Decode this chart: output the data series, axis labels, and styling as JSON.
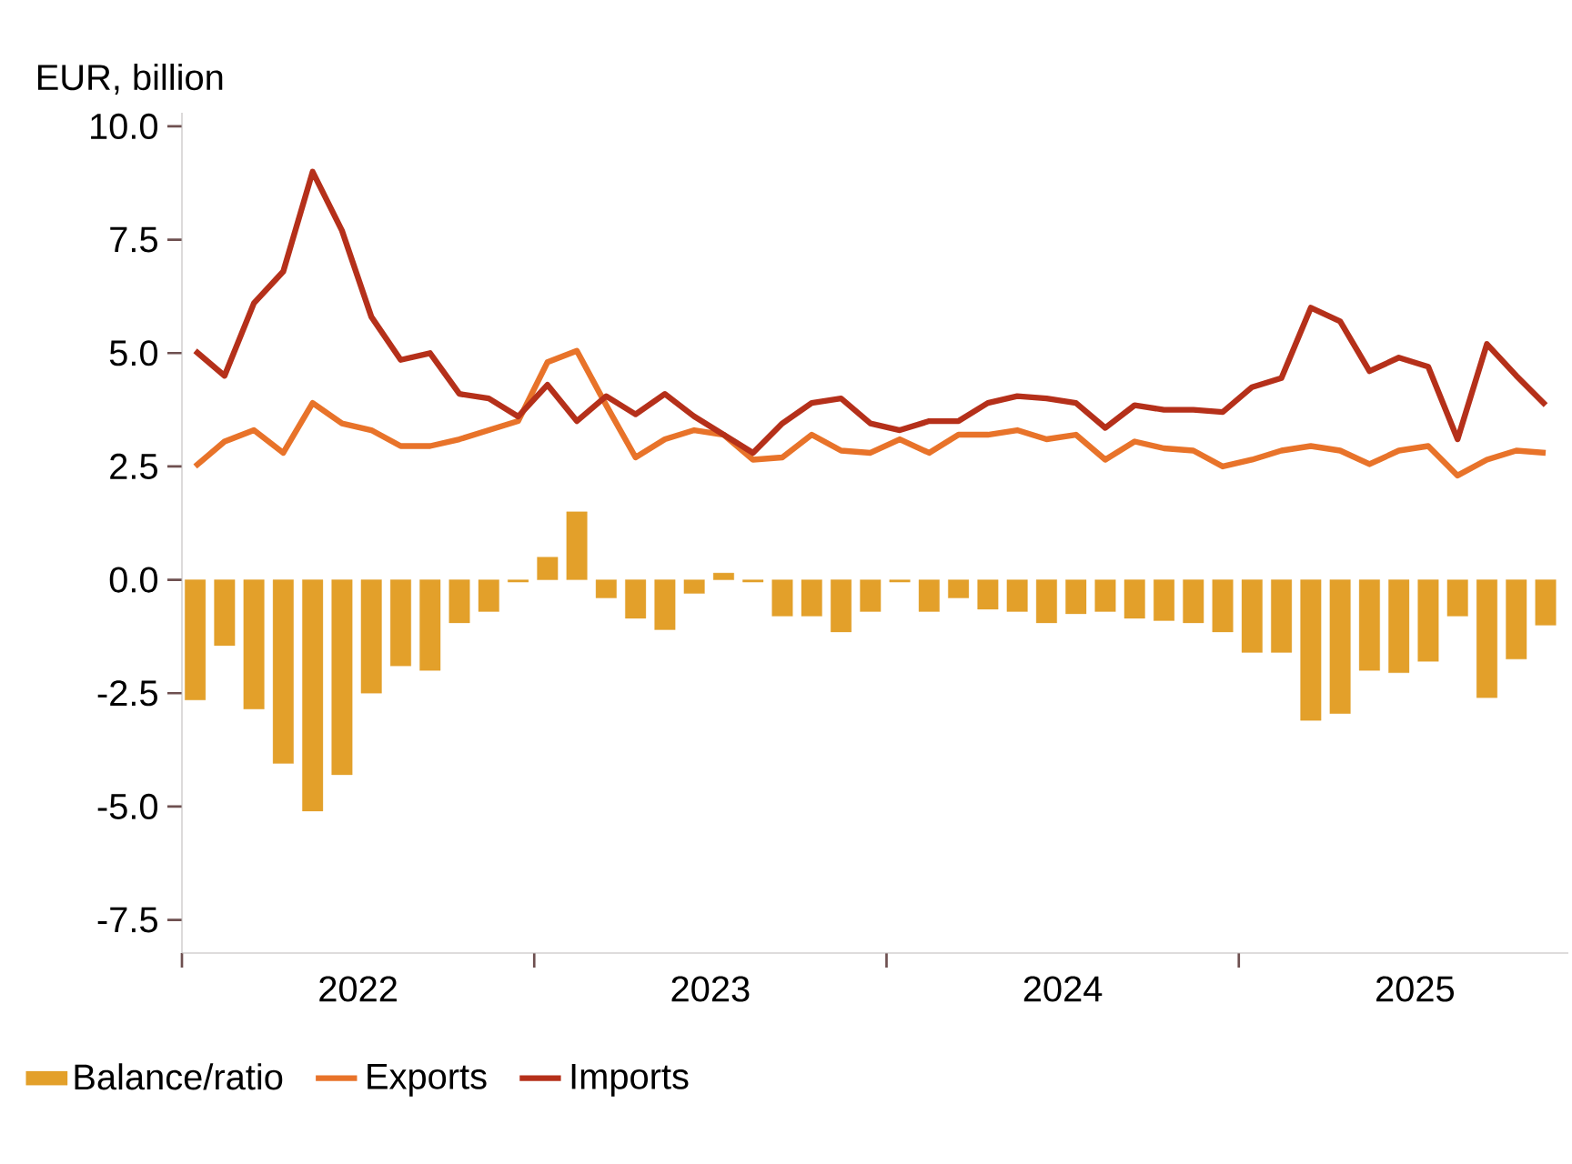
{
  "chart_data": {
    "type": "bar",
    "ylabel": "EUR, billion",
    "x": [
      "2022-01-15",
      "2022-02-15",
      "2022-03-15",
      "2022-04-15",
      "2022-05-15",
      "2022-06-15",
      "2022-07-15",
      "2022-08-15",
      "2022-09-15",
      "2022-10-15",
      "2022-11-15",
      "2022-12-15",
      "2023-01-15",
      "2023-02-15",
      "2023-03-15",
      "2023-04-15",
      "2023-05-15",
      "2023-06-15",
      "2023-07-15",
      "2023-08-15",
      "2023-09-15",
      "2023-10-15",
      "2023-11-15",
      "2023-12-15",
      "2024-01-15",
      "2024-02-15",
      "2024-03-15",
      "2024-04-15",
      "2024-05-15",
      "2024-06-15",
      "2024-07-15",
      "2024-08-15",
      "2024-09-15",
      "2024-10-15",
      "2024-11-15",
      "2024-12-15",
      "2025-01-15",
      "2025-02-15",
      "2025-03-15",
      "2025-04-15",
      "2025-05-15",
      "2025-06-15",
      "2025-07-15",
      "2025-08-15",
      "2025-09-15",
      "2025-10-15",
      "2025-11-15"
    ],
    "series": [
      {
        "name": "Balance/ratio",
        "color": "#e3a02a",
        "values": [
          -2.65,
          -1.45,
          -2.85,
          -4.05,
          -5.1,
          -4.3,
          -2.5,
          -1.9,
          -2.0,
          -0.95,
          -0.7,
          -0.05,
          0.5,
          1.5,
          -0.4,
          -0.85,
          -1.1,
          -0.3,
          0.15,
          -0.05,
          -0.8,
          -0.8,
          -1.15,
          -0.7,
          -0.05,
          -0.7,
          -0.4,
          -0.65,
          -0.7,
          -0.95,
          -0.75,
          -0.7,
          -0.85,
          -0.9,
          -0.95,
          -1.15,
          -1.6,
          -1.6,
          -3.1,
          -2.95,
          -2.0,
          -2.05,
          -1.8,
          -0.8,
          -2.6,
          -1.75,
          -1.0
        ]
      },
      {
        "name": "Exports",
        "type": "line",
        "color": "#e8732a",
        "values": [
          2.5,
          3.05,
          3.3,
          2.8,
          3.9,
          3.45,
          3.3,
          2.95,
          2.95,
          3.1,
          3.3,
          3.5,
          4.8,
          5.05,
          3.85,
          2.7,
          3.1,
          3.3,
          3.2,
          2.65,
          2.7,
          3.2,
          2.85,
          2.8,
          3.1,
          2.8,
          3.2,
          3.2,
          3.3,
          3.1,
          3.2,
          2.65,
          3.05,
          2.9,
          2.85,
          2.5,
          2.65,
          2.85,
          2.95,
          2.85,
          2.55,
          2.85,
          2.95,
          2.3,
          2.65,
          2.85,
          2.8
        ]
      },
      {
        "name": "Imports",
        "type": "line",
        "color": "#b5301a",
        "values": [
          5.05,
          4.5,
          6.1,
          6.8,
          9.0,
          7.7,
          5.8,
          4.85,
          5.0,
          4.1,
          4.0,
          3.6,
          4.3,
          3.5,
          4.05,
          3.65,
          4.1,
          3.6,
          3.2,
          2.8,
          3.45,
          3.9,
          4.0,
          3.45,
          3.3,
          3.5,
          3.5,
          3.9,
          4.05,
          4.0,
          3.9,
          3.35,
          3.85,
          3.75,
          3.75,
          3.7,
          4.25,
          4.45,
          6.0,
          5.7,
          4.6,
          4.9,
          4.7,
          3.1,
          5.2,
          4.5,
          3.85
        ]
      }
    ],
    "xlim": [
      "2022-01-01",
      "2025-12-08"
    ],
    "xticks": [
      {
        "value": "2022-01-01",
        "label": null
      },
      {
        "value": "2022-07-01",
        "label": "2022"
      },
      {
        "value": "2023-01-01",
        "label": null
      },
      {
        "value": "2023-07-01",
        "label": "2023"
      },
      {
        "value": "2024-01-01",
        "label": null
      },
      {
        "value": "2024-07-01",
        "label": "2024"
      },
      {
        "value": "2025-01-01",
        "label": null
      },
      {
        "value": "2025-07-01",
        "label": "2025"
      }
    ],
    "ylim": [
      -8.23,
      10.3
    ],
    "yticks": [
      {
        "value": -7.5,
        "label": "-7.5"
      },
      {
        "value": -5,
        "label": "-5.0"
      },
      {
        "value": -2.5,
        "label": "-2.5"
      },
      {
        "value": 0,
        "label": "0.0"
      },
      {
        "value": 2.5,
        "label": "2.5"
      },
      {
        "value": 5,
        "label": "5.0"
      },
      {
        "value": 7.5,
        "label": "7.5"
      },
      {
        "value": 10,
        "label": "10.0"
      }
    ],
    "legend": "bottom"
  }
}
